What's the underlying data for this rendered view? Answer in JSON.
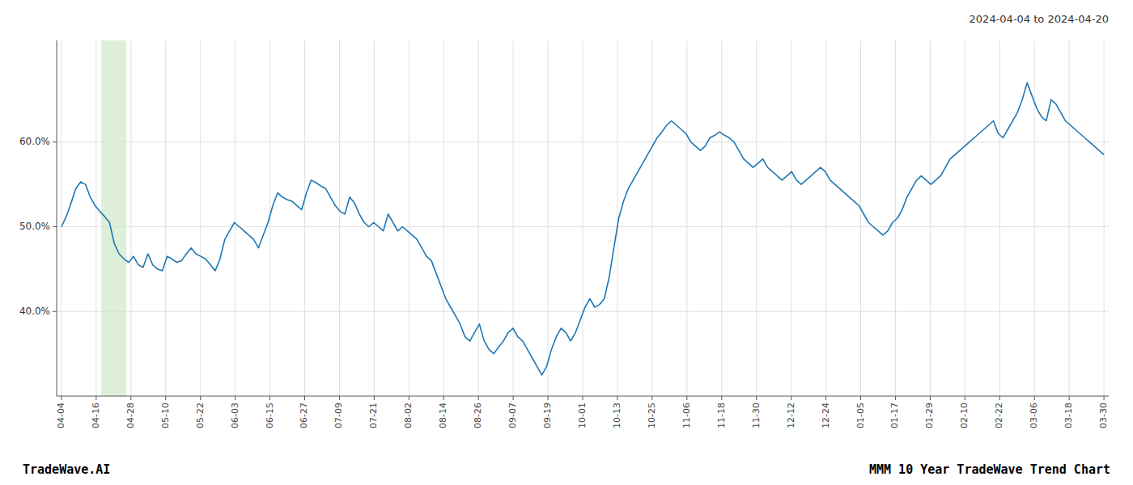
{
  "chart_data": {
    "type": "line",
    "title": "2024-04-04 to 2024-04-20",
    "annotations": [
      "TradeWave.AI",
      "MMM 10 Year TradeWave Trend Chart"
    ],
    "color": "#1f77b4",
    "grid": true,
    "values": [
      50.0,
      51.2,
      52.8,
      54.5,
      55.3,
      55.0,
      53.5,
      52.5,
      51.8,
      51.2,
      50.5,
      48.0,
      46.8,
      46.2,
      45.8,
      46.5,
      45.5,
      45.2,
      46.8,
      45.5,
      45.0,
      44.8,
      46.5,
      46.2,
      45.8,
      46.0,
      46.8,
      47.5,
      46.8,
      46.5,
      46.2,
      45.5,
      44.8,
      46.2,
      48.5,
      49.5,
      50.5,
      50.0,
      49.5,
      49.0,
      48.5,
      47.5,
      49.0,
      50.5,
      52.5,
      54.0,
      53.5,
      53.2,
      53.0,
      52.5,
      52.0,
      54.0,
      55.5,
      55.2,
      54.8,
      54.5,
      53.5,
      52.5,
      51.8,
      51.5,
      53.5,
      52.8,
      51.5,
      50.5,
      50.0,
      50.5,
      50.0,
      49.5,
      51.5,
      50.5,
      49.5,
      50.0,
      49.5,
      49.0,
      48.5,
      47.5,
      46.5,
      46.0,
      44.5,
      43.0,
      41.5,
      40.5,
      39.5,
      38.5,
      37.0,
      36.5,
      37.5,
      38.5,
      36.5,
      35.5,
      35.0,
      35.8,
      36.5,
      37.5,
      38.0,
      37.0,
      36.5,
      35.5,
      34.5,
      33.5,
      32.5,
      33.5,
      35.5,
      37.0,
      38.0,
      37.5,
      36.5,
      37.5,
      39.0,
      40.5,
      41.5,
      40.5,
      40.8,
      41.5,
      44.0,
      47.5,
      51.0,
      53.0,
      54.5,
      55.5,
      56.5,
      57.5,
      58.5,
      59.5,
      60.5,
      61.2,
      62.0,
      62.5,
      62.0,
      61.5,
      61.0,
      60.0,
      59.5,
      59.0,
      59.5,
      60.5,
      60.8,
      61.2,
      60.8,
      60.5,
      60.0,
      59.0,
      58.0,
      57.5,
      57.0,
      57.5,
      58.0,
      57.0,
      56.5,
      56.0,
      55.5,
      56.0,
      56.5,
      55.5,
      55.0,
      55.5,
      56.0,
      56.5,
      57.0,
      56.5,
      55.5,
      55.0,
      54.5,
      54.0,
      53.5,
      53.0,
      52.5,
      51.5,
      50.5,
      50.0,
      49.5,
      49.0,
      49.5,
      50.5,
      51.0,
      52.0,
      53.5,
      54.5,
      55.5,
      56.0,
      55.5,
      55.0,
      55.5,
      56.0,
      57.0,
      58.0,
      58.5,
      59.0,
      59.5,
      60.0,
      60.5,
      61.0,
      61.5,
      62.0,
      62.5,
      61.0,
      60.5,
      61.5,
      62.5,
      63.5,
      65.0,
      67.0,
      65.5,
      64.0,
      63.0,
      62.5,
      65.0,
      64.5,
      63.5,
      62.5,
      62.0,
      61.5,
      61.0,
      60.5,
      60.0,
      59.5,
      59.0,
      58.5
    ],
    "highlight": [
      8.284,
      13.516
    ],
    "xlim": [
      -1,
      218
    ],
    "xticks": [
      {
        "value": 0,
        "label": "04-04"
      },
      {
        "value": 7.233333333333333,
        "label": "04-16"
      },
      {
        "value": 14.466666666666667,
        "label": "04-28"
      },
      {
        "value": 21.7,
        "label": "05-10"
      },
      {
        "value": 28.933333333333334,
        "label": "05-22"
      },
      {
        "value": 36.166666666666664,
        "label": "06-03"
      },
      {
        "value": 43.4,
        "label": "06-15"
      },
      {
        "value": 50.63333333333333,
        "label": "06-27"
      },
      {
        "value": 57.86666666666667,
        "label": "07-09"
      },
      {
        "value": 65.1,
        "label": "07-21"
      },
      {
        "value": 72.33333333333333,
        "label": "08-02"
      },
      {
        "value": 79.56666666666666,
        "label": "08-14"
      },
      {
        "value": 86.8,
        "label": "08-26"
      },
      {
        "value": 94.03333333333333,
        "label": "09-07"
      },
      {
        "value": 101.26666666666667,
        "label": "09-19"
      },
      {
        "value": 108.5,
        "label": "10-01"
      },
      {
        "value": 115.73333333333333,
        "label": "10-13"
      },
      {
        "value": 122.96666666666667,
        "label": "10-25"
      },
      {
        "value": 130.2,
        "label": "11-06"
      },
      {
        "value": 137.43333333333334,
        "label": "11-18"
      },
      {
        "value": 144.66666666666666,
        "label": "11-30"
      },
      {
        "value": 151.9,
        "label": "12-12"
      },
      {
        "value": 159.13333333333333,
        "label": "12-24"
      },
      {
        "value": 166.36666666666667,
        "label": "01-05"
      },
      {
        "value": 173.6,
        "label": "01-17"
      },
      {
        "value": 180.83333333333334,
        "label": "01-29"
      },
      {
        "value": 188.06666666666666,
        "label": "02-10"
      },
      {
        "value": 195.3,
        "label": "02-22"
      },
      {
        "value": 202.53333333333333,
        "label": "03-06"
      },
      {
        "value": 209.76666666666668,
        "label": "03-18"
      },
      {
        "value": 217,
        "label": "03-30"
      }
    ],
    "ylim": [
      30,
      72
    ],
    "yticks": [
      {
        "value": 40.0,
        "label": "40.0%"
      },
      {
        "value": 50.0,
        "label": "50.0%"
      },
      {
        "value": 60.0,
        "label": "60.0%"
      }
    ]
  }
}
